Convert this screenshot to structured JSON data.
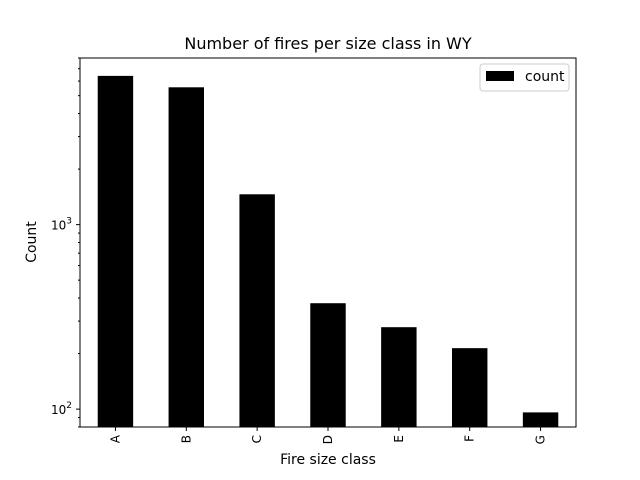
{
  "chart_data": {
    "type": "bar",
    "title": "Number of fires per size class in WY",
    "xlabel": "Fire size class",
    "ylabel": "Count",
    "yscale": "log",
    "ylim": [
      80,
      8000
    ],
    "categories": [
      "A",
      "B",
      "C",
      "D",
      "E",
      "F",
      "G"
    ],
    "series": [
      {
        "name": "count",
        "values": [
          6400,
          5550,
          1460,
          375,
          278,
          214,
          96
        ],
        "color": "#000000"
      }
    ],
    "yticks": [
      {
        "value": 100,
        "base": "10",
        "exp": "2"
      },
      {
        "value": 1000,
        "base": "10",
        "exp": "3"
      }
    ],
    "legend": {
      "position": "top-right"
    },
    "grid": false
  }
}
